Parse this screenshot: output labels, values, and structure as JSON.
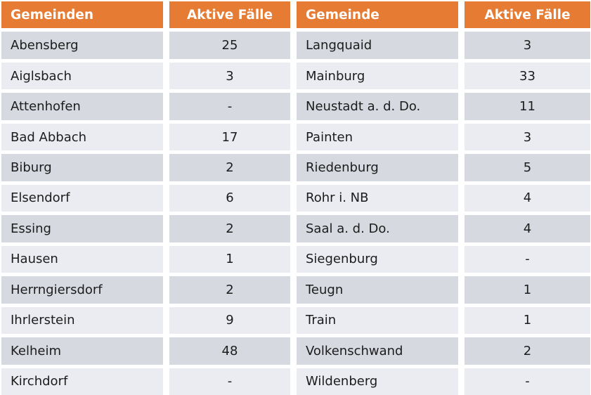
{
  "table": {
    "headers": [
      "Gemeinden",
      "Aktive Fälle",
      "Gemeinde",
      "Aktive Fälle"
    ],
    "rows": [
      {
        "left_name": "Abensberg",
        "left_value": "25",
        "right_name": "Langquaid",
        "right_value": "3"
      },
      {
        "left_name": "Aiglsbach",
        "left_value": "3",
        "right_name": "Mainburg",
        "right_value": "33"
      },
      {
        "left_name": "Attenhofen",
        "left_value": "-",
        "right_name": "Neustadt a. d. Do.",
        "right_value": "11"
      },
      {
        "left_name": "Bad Abbach",
        "left_value": "17",
        "right_name": "Painten",
        "right_value": "3"
      },
      {
        "left_name": "Biburg",
        "left_value": "2",
        "right_name": "Riedenburg",
        "right_value": "5"
      },
      {
        "left_name": "Elsendorf",
        "left_value": "6",
        "right_name": "Rohr i. NB",
        "right_value": "4"
      },
      {
        "left_name": "Essing",
        "left_value": "2",
        "right_name": "Saal a. d. Do.",
        "right_value": "4"
      },
      {
        "left_name": "Hausen",
        "left_value": "1",
        "right_name": "Siegenburg",
        "right_value": "-"
      },
      {
        "left_name": "Herrngiersdorf",
        "left_value": "2",
        "right_name": "Teugn",
        "right_value": "1"
      },
      {
        "left_name": "Ihrlerstein",
        "left_value": "9",
        "right_name": "Train",
        "right_value": "1"
      },
      {
        "left_name": "Kelheim",
        "left_value": "48",
        "right_name": "Volkenschwand",
        "right_value": "2"
      },
      {
        "left_name": "Kirchdorf",
        "left_value": "-",
        "right_name": "Wildenberg",
        "right_value": "-"
      }
    ]
  },
  "colors": {
    "header_bg": "#E67C33",
    "header_text": "#FFFFFF",
    "row_dark": "#D6D9E0",
    "row_light": "#EAECF1",
    "body_text": "#1C1C1C",
    "gap": "#FFFFFF"
  }
}
